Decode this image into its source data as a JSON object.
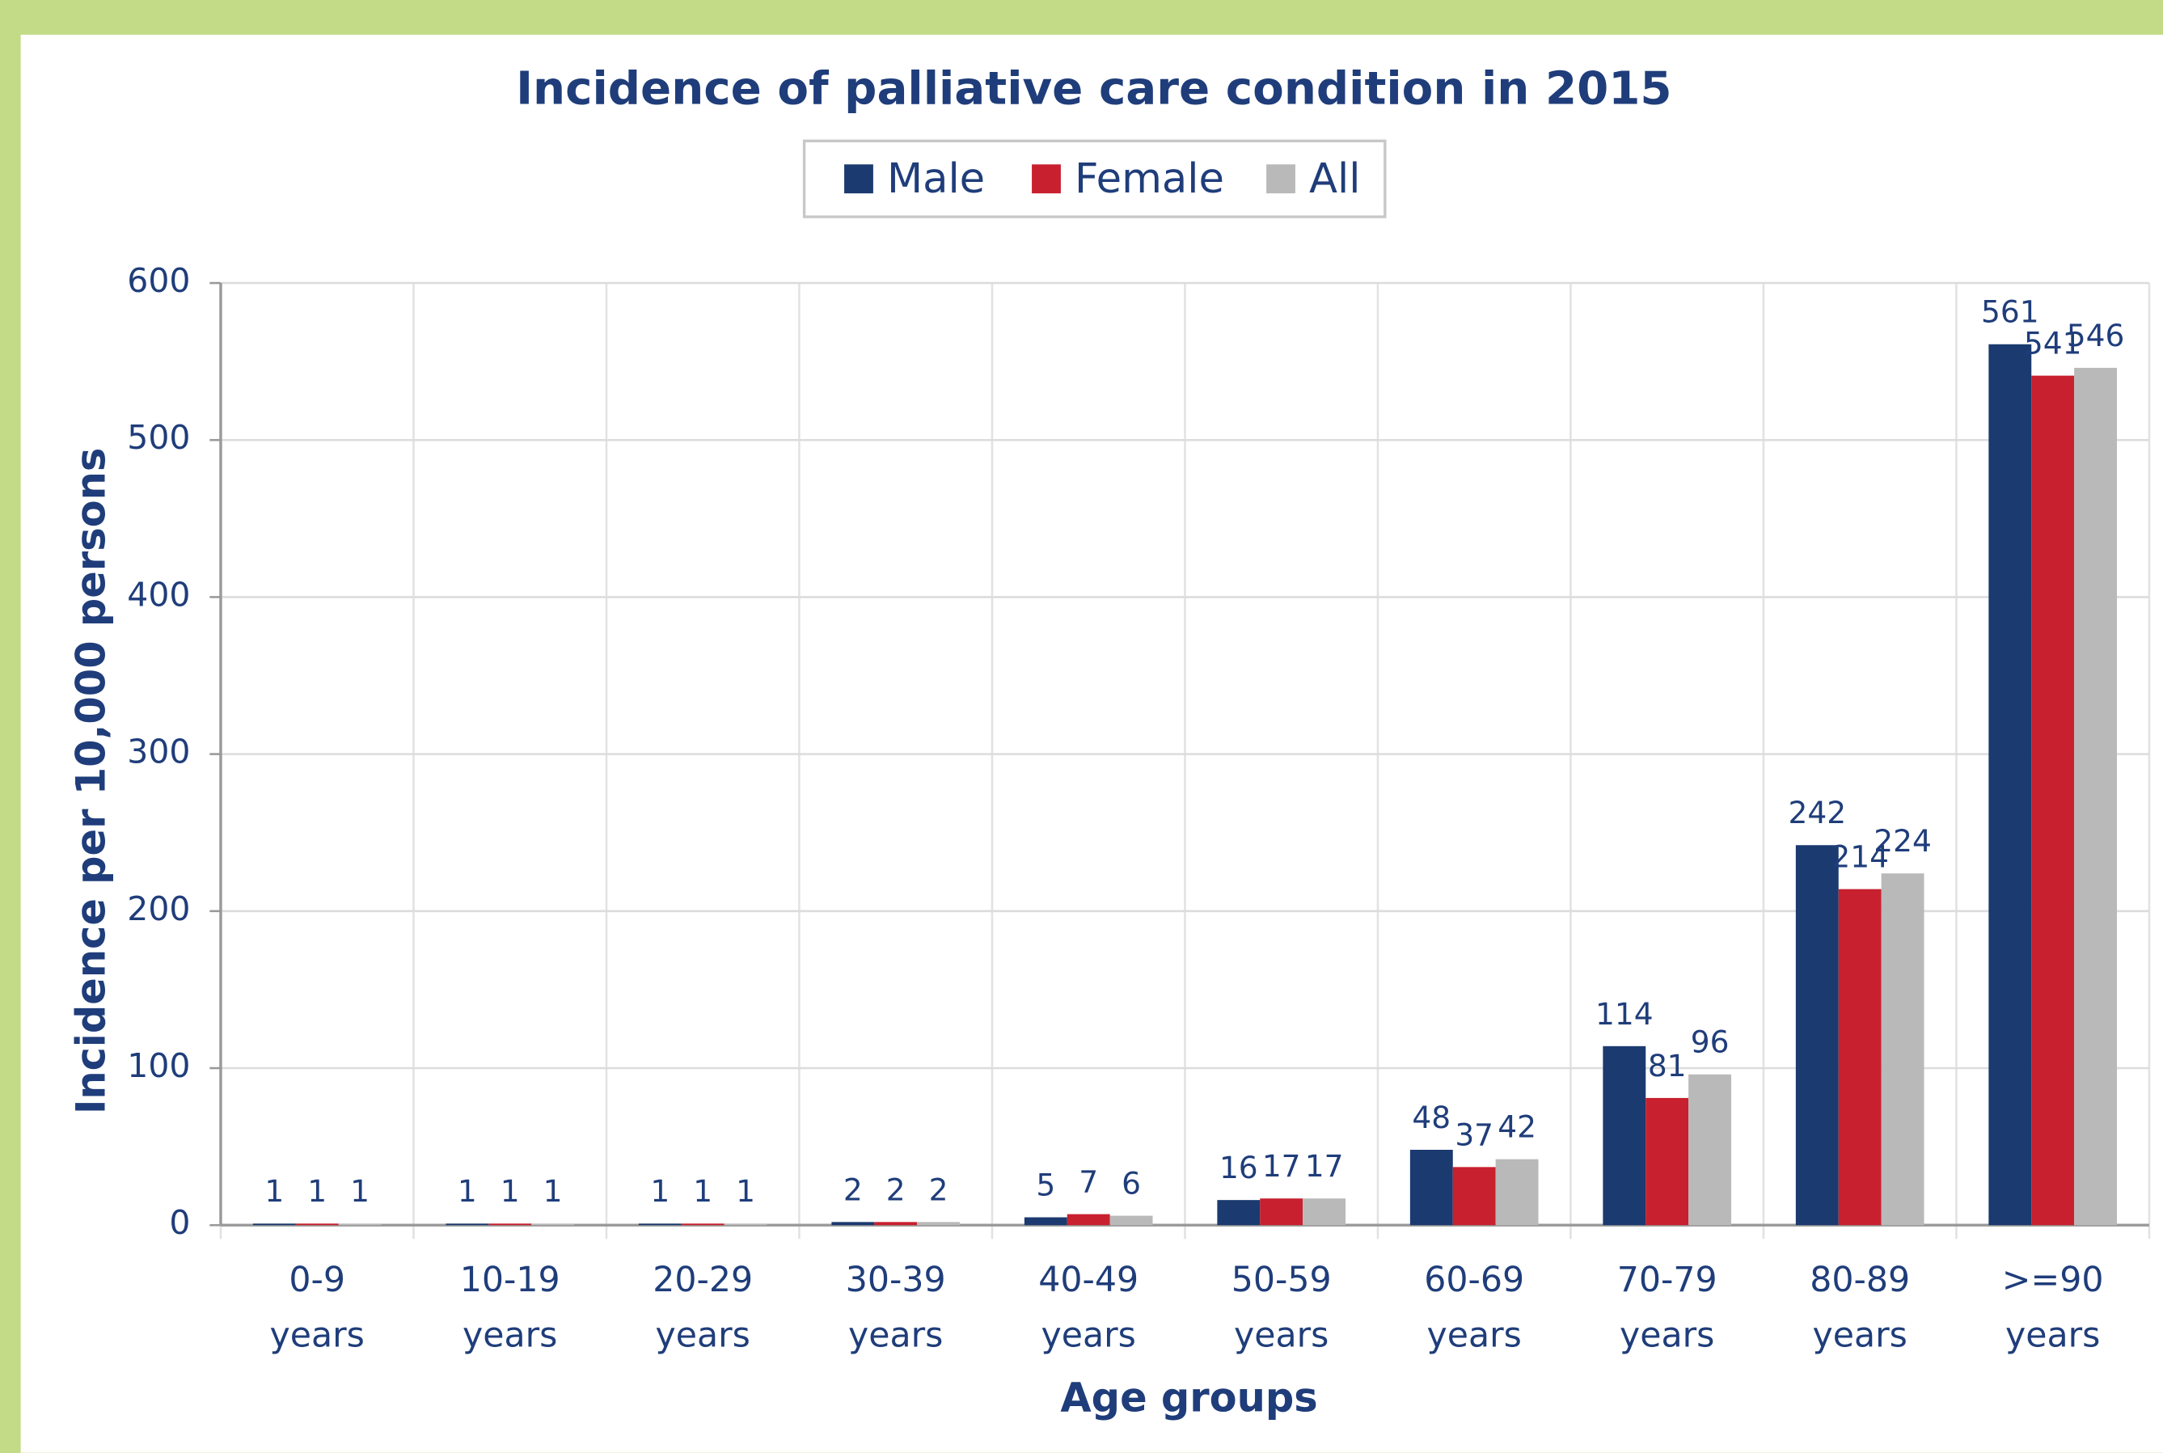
{
  "chart_data": {
    "type": "bar",
    "title": "Incidence of palliative care condition in 2015",
    "x_label": "Age groups",
    "y_label": "Incidence per 10,000 persons",
    "categories": [
      "0-9 years",
      "10-19 years",
      "20-29 years",
      "30-39 years",
      "40-49 years",
      "50-59 years",
      "60-69 years",
      "70-79 years",
      "80-89 years",
      ">=90 years"
    ],
    "series": [
      {
        "name": "Male",
        "color": "#1b3a6f",
        "values": [
          1,
          1,
          1,
          2,
          5,
          16,
          48,
          114,
          242,
          561
        ]
      },
      {
        "name": "Female",
        "color": "#c8202f",
        "values": [
          1,
          1,
          1,
          2,
          7,
          17,
          37,
          81,
          214,
          541
        ]
      },
      {
        "name": "All",
        "color": "#b9b9b9",
        "values": [
          1,
          1,
          1,
          2,
          6,
          17,
          42,
          96,
          224,
          546
        ]
      }
    ],
    "ylim": [
      0,
      600
    ],
    "yticks": [
      0,
      100,
      200,
      300,
      400,
      500,
      600
    ],
    "grid": true,
    "legend": "top"
  }
}
